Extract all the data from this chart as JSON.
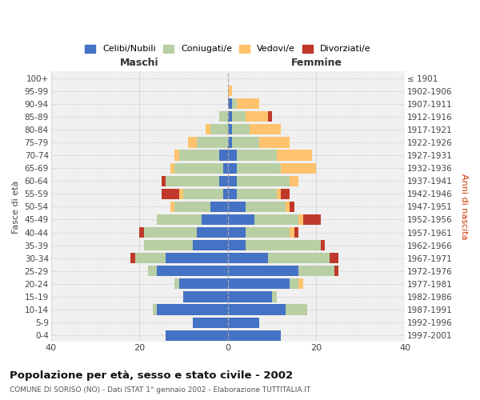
{
  "age_groups": [
    "0-4",
    "5-9",
    "10-14",
    "15-19",
    "20-24",
    "25-29",
    "30-34",
    "35-39",
    "40-44",
    "45-49",
    "50-54",
    "55-59",
    "60-64",
    "65-69",
    "70-74",
    "75-79",
    "80-84",
    "85-89",
    "90-94",
    "95-99",
    "100+"
  ],
  "birth_years": [
    "1997-2001",
    "1992-1996",
    "1987-1991",
    "1982-1986",
    "1977-1981",
    "1972-1976",
    "1967-1971",
    "1962-1966",
    "1957-1961",
    "1952-1956",
    "1947-1951",
    "1942-1946",
    "1937-1941",
    "1932-1936",
    "1927-1931",
    "1922-1926",
    "1917-1921",
    "1912-1916",
    "1907-1911",
    "1902-1906",
    "≤ 1901"
  ],
  "maschi": {
    "celibi": [
      14,
      8,
      16,
      10,
      11,
      16,
      14,
      8,
      7,
      6,
      4,
      1,
      2,
      1,
      2,
      0,
      0,
      0,
      0,
      0,
      0
    ],
    "coniugati": [
      0,
      0,
      1,
      0,
      1,
      2,
      7,
      11,
      12,
      10,
      8,
      9,
      12,
      11,
      9,
      7,
      4,
      2,
      0,
      0,
      0
    ],
    "vedovi": [
      0,
      0,
      0,
      0,
      0,
      0,
      0,
      0,
      0,
      0,
      1,
      1,
      0,
      1,
      1,
      2,
      1,
      0,
      0,
      0,
      0
    ],
    "divorziati": [
      0,
      0,
      0,
      0,
      0,
      0,
      1,
      0,
      1,
      0,
      0,
      4,
      1,
      0,
      0,
      0,
      0,
      0,
      0,
      0,
      0
    ]
  },
  "femmine": {
    "nubili": [
      12,
      7,
      13,
      10,
      14,
      16,
      9,
      4,
      4,
      6,
      4,
      2,
      2,
      2,
      2,
      1,
      1,
      1,
      1,
      0,
      0
    ],
    "coniugate": [
      0,
      0,
      5,
      1,
      2,
      8,
      14,
      17,
      10,
      10,
      9,
      9,
      12,
      10,
      9,
      6,
      4,
      3,
      1,
      0,
      0
    ],
    "vedove": [
      0,
      0,
      0,
      0,
      1,
      0,
      0,
      0,
      1,
      1,
      1,
      1,
      2,
      8,
      8,
      7,
      7,
      5,
      5,
      1,
      0
    ],
    "divorziate": [
      0,
      0,
      0,
      0,
      0,
      1,
      2,
      1,
      1,
      4,
      1,
      2,
      0,
      0,
      0,
      0,
      0,
      1,
      0,
      0,
      0
    ]
  },
  "colors": {
    "celibi": "#4472c4",
    "coniugati": "#b8cfa4",
    "vedovi": "#ffc36d",
    "divorziati": "#c0392b"
  },
  "title": "Popolazione per età, sesso e stato civile - 2002",
  "subtitle": "COMUNE DI SORISO (NO) - Dati ISTAT 1° gennaio 2002 - Elaborazione TUTTITALIA.IT",
  "xlabel_left": "Maschi",
  "xlabel_right": "Femmine",
  "ylabel_left": "Fasce di età",
  "ylabel_right": "Anni di nascita",
  "xlim": 40,
  "background_color": "#ffffff",
  "legend_labels": [
    "Celibi/Nubili",
    "Coniugati/e",
    "Vedovi/e",
    "Divorziati/e"
  ]
}
